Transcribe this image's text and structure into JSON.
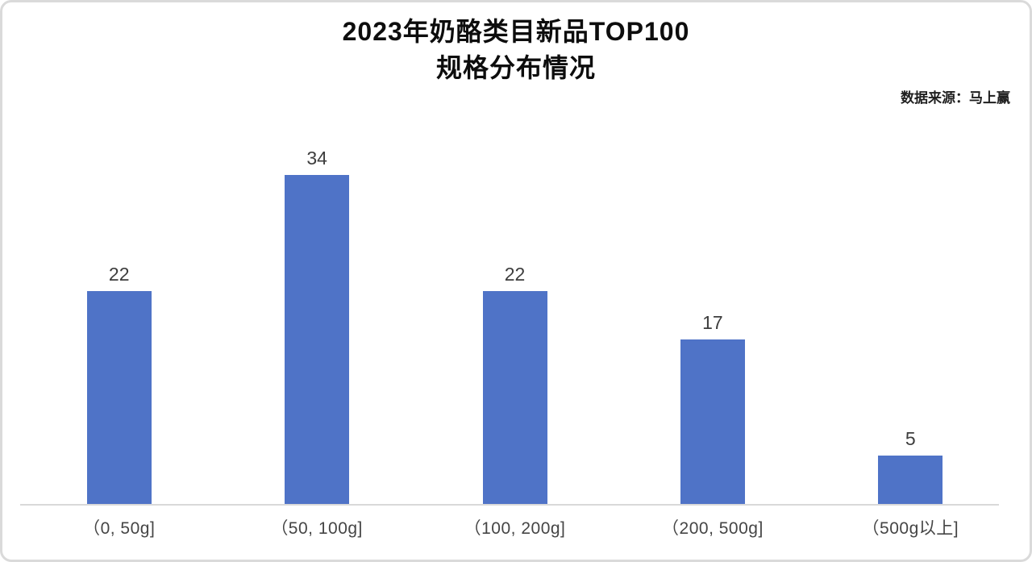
{
  "header": {
    "title_line1": "2023年奶酪类目新品TOP100",
    "title_line2": "规格分布情况",
    "source": "数据来源：马上赢"
  },
  "chart_data": {
    "type": "bar",
    "title": "2023年奶酪类目新品TOP100 规格分布情况",
    "categories": [
      "（0, 50g]",
      "（50, 100g]",
      "（100, 200g]",
      "（200, 500g]",
      "（500g以上]"
    ],
    "values": [
      22,
      34,
      22,
      17,
      5
    ],
    "data_labels_shown": true,
    "xlabel": "",
    "ylabel": "",
    "ylim": [
      0,
      40
    ],
    "grid": false,
    "legend": false,
    "y_axis_shown": false,
    "bar_color": "#4f73c7",
    "axis_line_color": "#d9d9d9",
    "label_color": "#3d3d3d"
  }
}
